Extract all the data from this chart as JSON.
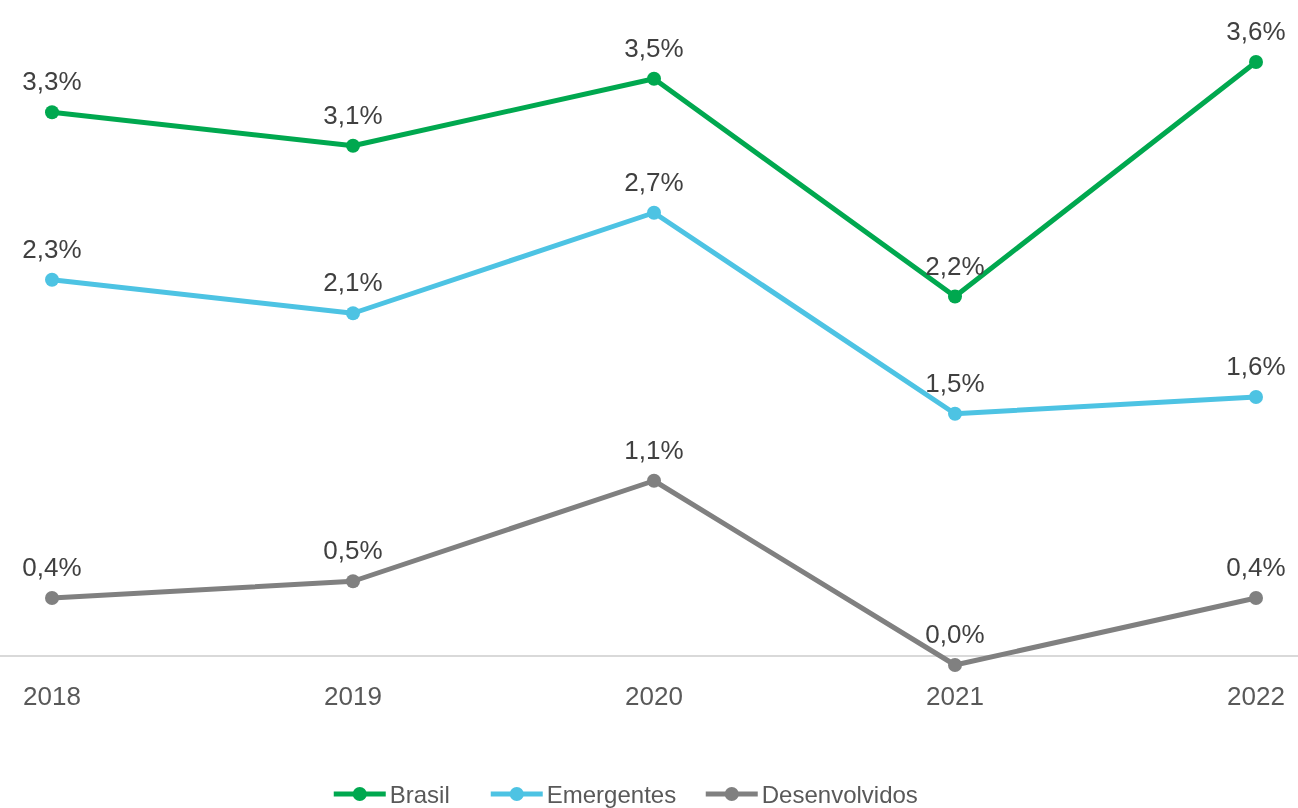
{
  "chart_data": {
    "type": "line",
    "categories": [
      "2018",
      "2019",
      "2020",
      "2021",
      "2022"
    ],
    "marker": "circle",
    "legend": "bottom",
    "series": [
      {
        "name": "Brasil",
        "color": "#00a84f",
        "values": [
          3.3,
          3.1,
          3.5,
          2.2,
          3.6
        ],
        "value_labels": [
          "3,3%",
          "3,1%",
          "3,5%",
          "2,2%",
          "3,6%"
        ]
      },
      {
        "name": "Emergentes",
        "color": "#4dc3e3",
        "values": [
          2.3,
          2.1,
          2.7,
          1.5,
          1.6
        ],
        "value_labels": [
          "2,3%",
          "2,1%",
          "2,7%",
          "1,5%",
          "1,6%"
        ]
      },
      {
        "name": "Desenvolvidos",
        "color": "#808080",
        "values": [
          0.4,
          0.5,
          1.1,
          0.0,
          0.4
        ],
        "value_labels": [
          "0,4%",
          "0,5%",
          "1,1%",
          "0,0%",
          "0,4%"
        ]
      }
    ]
  }
}
